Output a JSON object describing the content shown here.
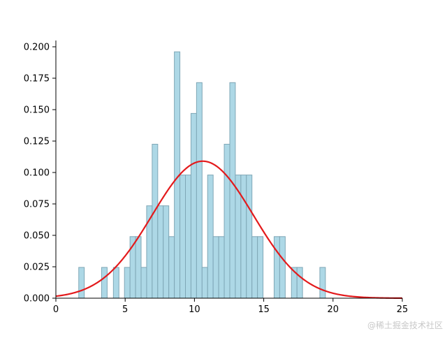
{
  "chart_data": {
    "type": "bar",
    "subtype": "histogram-with-normal-curve",
    "title": "",
    "xlabel": "",
    "ylabel": "",
    "xlim": [
      0,
      25
    ],
    "ylim": [
      0,
      0.205
    ],
    "x_ticks": [
      0,
      5,
      10,
      15,
      20,
      25
    ],
    "y_ticks": [
      0.0,
      0.025,
      0.05,
      0.075,
      0.1,
      0.125,
      0.15,
      0.175,
      0.2
    ],
    "y_tick_labels": [
      "0.000",
      "0.025",
      "0.050",
      "0.075",
      "0.100",
      "0.125",
      "0.150",
      "0.175",
      "0.200"
    ],
    "grid": false,
    "legend": "none",
    "bins": [
      {
        "x0": 1.65,
        "x1": 2.05,
        "density": 0.0245
      },
      {
        "x0": 3.3,
        "x1": 3.7,
        "density": 0.0245
      },
      {
        "x0": 4.15,
        "x1": 4.55,
        "density": 0.0245
      },
      {
        "x0": 4.95,
        "x1": 5.35,
        "density": 0.0245
      },
      {
        "x0": 5.35,
        "x1": 5.75,
        "density": 0.049
      },
      {
        "x0": 5.75,
        "x1": 6.15,
        "density": 0.049
      },
      {
        "x0": 6.15,
        "x1": 6.55,
        "density": 0.0245
      },
      {
        "x0": 6.55,
        "x1": 6.95,
        "density": 0.0735
      },
      {
        "x0": 6.95,
        "x1": 7.35,
        "density": 0.1225
      },
      {
        "x0": 7.35,
        "x1": 7.75,
        "density": 0.0735
      },
      {
        "x0": 7.75,
        "x1": 8.15,
        "density": 0.0735
      },
      {
        "x0": 8.15,
        "x1": 8.55,
        "density": 0.049
      },
      {
        "x0": 8.55,
        "x1": 8.95,
        "density": 0.196
      },
      {
        "x0": 8.95,
        "x1": 9.35,
        "density": 0.098
      },
      {
        "x0": 9.35,
        "x1": 9.75,
        "density": 0.098
      },
      {
        "x0": 9.75,
        "x1": 10.15,
        "density": 0.147
      },
      {
        "x0": 10.15,
        "x1": 10.55,
        "density": 0.1715
      },
      {
        "x0": 10.55,
        "x1": 10.95,
        "density": 0.0245
      },
      {
        "x0": 10.95,
        "x1": 11.35,
        "density": 0.098
      },
      {
        "x0": 11.35,
        "x1": 11.75,
        "density": 0.049
      },
      {
        "x0": 11.75,
        "x1": 12.15,
        "density": 0.049
      },
      {
        "x0": 12.15,
        "x1": 12.55,
        "density": 0.1225
      },
      {
        "x0": 12.55,
        "x1": 12.95,
        "density": 0.1715
      },
      {
        "x0": 12.95,
        "x1": 13.35,
        "density": 0.098
      },
      {
        "x0": 13.35,
        "x1": 13.75,
        "density": 0.098
      },
      {
        "x0": 13.75,
        "x1": 14.15,
        "density": 0.098
      },
      {
        "x0": 14.15,
        "x1": 14.55,
        "density": 0.049
      },
      {
        "x0": 14.55,
        "x1": 14.95,
        "density": 0.049
      },
      {
        "x0": 15.75,
        "x1": 16.15,
        "density": 0.049
      },
      {
        "x0": 16.15,
        "x1": 16.55,
        "density": 0.049
      },
      {
        "x0": 17.0,
        "x1": 17.4,
        "density": 0.0245
      },
      {
        "x0": 17.4,
        "x1": 17.8,
        "density": 0.0245
      },
      {
        "x0": 19.05,
        "x1": 19.45,
        "density": 0.0245
      }
    ],
    "normal_curve": {
      "mean": 10.6,
      "std": 3.65,
      "peak": 0.109
    },
    "colors": {
      "bar_fill": "#add8e6",
      "bar_edge": "#7fa7b6",
      "curve": "#e31a1c",
      "axis": "#000000"
    }
  },
  "watermark": "@稀土掘金技术社区"
}
